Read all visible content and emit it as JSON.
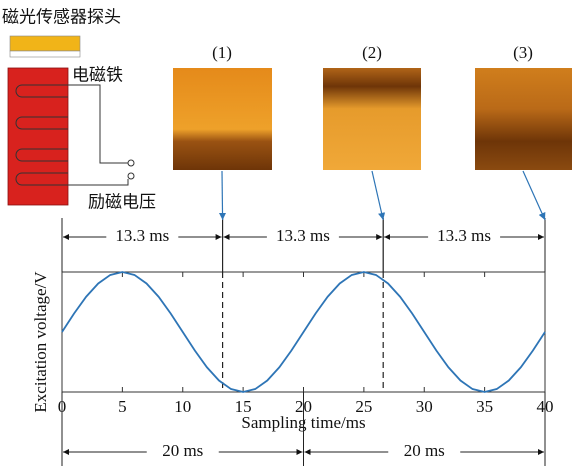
{
  "diagram": {
    "probe_label": "磁光传感器探头",
    "magnet_label": "电磁铁",
    "voltage_label": "励磁电压",
    "panels": [
      "(1)",
      "(2)",
      "(3)"
    ]
  },
  "chart_data": {
    "type": "line",
    "xlabel": "Sampling time/ms",
    "ylabel": "Excitation voltage/V",
    "x": [
      0,
      1,
      2,
      3,
      4,
      5,
      6,
      7,
      8,
      9,
      10,
      11,
      12,
      13,
      14,
      15,
      16,
      17,
      18,
      19,
      20,
      21,
      22,
      23,
      24,
      25,
      26,
      27,
      28,
      29,
      30,
      31,
      32,
      33,
      34,
      35,
      36,
      37,
      38,
      39,
      40
    ],
    "values": [
      0,
      0.309,
      0.588,
      0.809,
      0.951,
      1,
      0.951,
      0.809,
      0.588,
      0.309,
      0,
      -0.309,
      -0.588,
      -0.809,
      -0.951,
      -1,
      -0.951,
      -0.809,
      -0.588,
      -0.309,
      0,
      0.309,
      0.588,
      0.809,
      0.951,
      1,
      0.951,
      0.809,
      0.588,
      0.309,
      0,
      -0.309,
      -0.588,
      -0.809,
      -0.951,
      -1,
      -0.951,
      -0.809,
      -0.588,
      -0.309,
      0
    ],
    "color": "#2e75b6",
    "xlim": [
      0,
      40
    ],
    "ylim": [
      -1,
      1
    ],
    "xticks": [
      0,
      5,
      10,
      15,
      20,
      25,
      30,
      35,
      40
    ],
    "sample_lines": [
      13.3,
      26.6
    ],
    "top_intervals": [
      {
        "label": "13.3 ms",
        "start": 0,
        "end": 13.3
      },
      {
        "label": "13.3 ms",
        "start": 13.3,
        "end": 26.6
      },
      {
        "label": "13.3 ms",
        "start": 26.6,
        "end": 40
      }
    ],
    "bottom_intervals": [
      {
        "label": "20 ms",
        "start": 0,
        "end": 20
      },
      {
        "label": "20 ms",
        "start": 20,
        "end": 40
      }
    ]
  }
}
